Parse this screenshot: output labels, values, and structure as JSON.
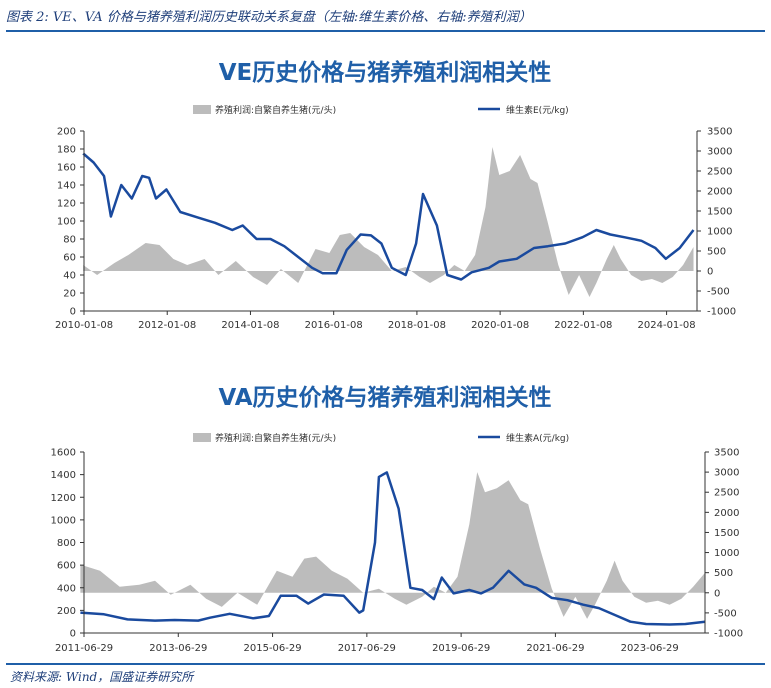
{
  "figure_caption": "图表 2: VE、VA 价格与猪养殖利润历史联动关系复盘（左轴:维生素价格、右轴:养殖利润）",
  "source": "资料来源: Wind，国盛证券研究所",
  "colors": {
    "line": "#1a4a9e",
    "area": "#bcbcbc",
    "title": "#1f5fa8",
    "axis": "#333333",
    "rule": "#1f5fa8"
  },
  "chart_data": [
    {
      "type": "line",
      "title": "VE历史价格与猪养殖利润相关性",
      "x_ticks": [
        "2010-01-08",
        "2012-01-08",
        "2014-01-08",
        "2016-01-08",
        "2018-01-08",
        "2020-01-08",
        "2022-01-08",
        "2024-01-08"
      ],
      "y_left": {
        "ticks": [
          0,
          20,
          40,
          60,
          80,
          100,
          120,
          140,
          160,
          180,
          200
        ],
        "range": [
          0,
          200
        ]
      },
      "y_right": {
        "ticks": [
          -1000,
          -500,
          0,
          500,
          1000,
          1500,
          2000,
          2500,
          3000,
          3500
        ],
        "range": [
          -1000,
          3500
        ]
      },
      "x_range": [
        "2010-01-08",
        "2024-10-01"
      ],
      "series": [
        {
          "name": "养殖利润:自繁自养生猪(元/头)",
          "type": "area",
          "axis": "right",
          "points": [
            [
              "2010-01",
              150
            ],
            [
              "2010-05",
              -100
            ],
            [
              "2010-10",
              200
            ],
            [
              "2011-02",
              400
            ],
            [
              "2011-07",
              700
            ],
            [
              "2011-11",
              650
            ],
            [
              "2012-03",
              300
            ],
            [
              "2012-07",
              150
            ],
            [
              "2012-12",
              300
            ],
            [
              "2013-04",
              -100
            ],
            [
              "2013-09",
              250
            ],
            [
              "2014-02",
              -150
            ],
            [
              "2014-06",
              -350
            ],
            [
              "2014-10",
              50
            ],
            [
              "2015-03",
              -300
            ],
            [
              "2015-08",
              550
            ],
            [
              "2015-12",
              450
            ],
            [
              "2016-03",
              900
            ],
            [
              "2016-06",
              950
            ],
            [
              "2016-10",
              600
            ],
            [
              "2017-02",
              400
            ],
            [
              "2017-06",
              0
            ],
            [
              "2017-10",
              100
            ],
            [
              "2018-02",
              -150
            ],
            [
              "2018-05",
              -300
            ],
            [
              "2018-09",
              -100
            ],
            [
              "2018-12",
              150
            ],
            [
              "2019-03",
              0
            ],
            [
              "2019-06",
              400
            ],
            [
              "2019-09",
              1600
            ],
            [
              "2019-11",
              3100
            ],
            [
              "2020-01",
              2400
            ],
            [
              "2020-04",
              2500
            ],
            [
              "2020-07",
              2900
            ],
            [
              "2020-10",
              2300
            ],
            [
              "2020-12",
              2200
            ],
            [
              "2021-03",
              1200
            ],
            [
              "2021-06",
              150
            ],
            [
              "2021-09",
              -600
            ],
            [
              "2021-12",
              -100
            ],
            [
              "2022-03",
              -650
            ],
            [
              "2022-05",
              -300
            ],
            [
              "2022-08",
              300
            ],
            [
              "2022-10",
              650
            ],
            [
              "2022-12",
              300
            ],
            [
              "2023-03",
              -100
            ],
            [
              "2023-06",
              -250
            ],
            [
              "2023-09",
              -200
            ],
            [
              "2023-12",
              -300
            ],
            [
              "2024-03",
              -150
            ],
            [
              "2024-06",
              150
            ],
            [
              "2024-09",
              600
            ]
          ]
        },
        {
          "name": "维生素E(元/kg)",
          "type": "line",
          "axis": "left",
          "points": [
            [
              "2010-01",
              175
            ],
            [
              "2010-04",
              165
            ],
            [
              "2010-07",
              150
            ],
            [
              "2010-09",
              105
            ],
            [
              "2010-12",
              140
            ],
            [
              "2011-03",
              125
            ],
            [
              "2011-06",
              150
            ],
            [
              "2011-08",
              148
            ],
            [
              "2011-10",
              125
            ],
            [
              "2012-01",
              135
            ],
            [
              "2012-05",
              110
            ],
            [
              "2012-10",
              104
            ],
            [
              "2013-03",
              98
            ],
            [
              "2013-08",
              90
            ],
            [
              "2013-11",
              95
            ],
            [
              "2014-03",
              80
            ],
            [
              "2014-07",
              80
            ],
            [
              "2014-11",
              72
            ],
            [
              "2015-03",
              60
            ],
            [
              "2015-07",
              48
            ],
            [
              "2015-10",
              42
            ],
            [
              "2016-02",
              42
            ],
            [
              "2016-05",
              68
            ],
            [
              "2016-09",
              85
            ],
            [
              "2016-12",
              84
            ],
            [
              "2017-03",
              75
            ],
            [
              "2017-06",
              48
            ],
            [
              "2017-10",
              40
            ],
            [
              "2018-01",
              75
            ],
            [
              "2018-03",
              130
            ],
            [
              "2018-07",
              95
            ],
            [
              "2018-10",
              40
            ],
            [
              "2019-02",
              35
            ],
            [
              "2019-05",
              43
            ],
            [
              "2019-10",
              48
            ],
            [
              "2020-01",
              55
            ],
            [
              "2020-06",
              58
            ],
            [
              "2020-11",
              70
            ],
            [
              "2021-03",
              72
            ],
            [
              "2021-08",
              75
            ],
            [
              "2022-01",
              82
            ],
            [
              "2022-05",
              90
            ],
            [
              "2022-09",
              85
            ],
            [
              "2023-01",
              82
            ],
            [
              "2023-06",
              78
            ],
            [
              "2023-10",
              70
            ],
            [
              "2024-01",
              58
            ],
            [
              "2024-05",
              70
            ],
            [
              "2024-09",
              90
            ]
          ]
        }
      ]
    },
    {
      "type": "line",
      "title": "VA历史价格与猪养殖利润相关性",
      "x_ticks": [
        "2011-06-29",
        "2013-06-29",
        "2015-06-29",
        "2017-06-29",
        "2019-06-29",
        "2021-06-29",
        "2023-06-29"
      ],
      "y_left": {
        "ticks": [
          0,
          200,
          400,
          600,
          800,
          1000,
          1200,
          1400,
          1600
        ],
        "range": [
          0,
          1600
        ]
      },
      "y_right": {
        "ticks": [
          -1000,
          -500,
          0,
          500,
          1000,
          1500,
          2000,
          2500,
          3000,
          3500
        ],
        "range": [
          -1000,
          3500
        ]
      },
      "x_range": [
        "2011-06-29",
        "2024-09-01"
      ],
      "series": [
        {
          "name": "养殖利润:自繁自养生猪(元/头)",
          "type": "area",
          "axis": "right",
          "points": [
            [
              "2011-06",
              700
            ],
            [
              "2011-11",
              550
            ],
            [
              "2012-04",
              150
            ],
            [
              "2012-09",
              200
            ],
            [
              "2013-01",
              300
            ],
            [
              "2013-05",
              -50
            ],
            [
              "2013-10",
              200
            ],
            [
              "2014-02",
              -150
            ],
            [
              "2014-06",
              -350
            ],
            [
              "2014-10",
              0
            ],
            [
              "2015-03",
              -300
            ],
            [
              "2015-08",
              550
            ],
            [
              "2015-12",
              400
            ],
            [
              "2016-03",
              850
            ],
            [
              "2016-06",
              900
            ],
            [
              "2016-10",
              550
            ],
            [
              "2017-02",
              350
            ],
            [
              "2017-06",
              0
            ],
            [
              "2017-10",
              100
            ],
            [
              "2018-02",
              -150
            ],
            [
              "2018-05",
              -300
            ],
            [
              "2018-09",
              -100
            ],
            [
              "2018-12",
              150
            ],
            [
              "2019-03",
              0
            ],
            [
              "2019-06",
              400
            ],
            [
              "2019-09",
              1700
            ],
            [
              "2019-11",
              3000
            ],
            [
              "2020-01",
              2500
            ],
            [
              "2020-04",
              2600
            ],
            [
              "2020-07",
              2800
            ],
            [
              "2020-10",
              2300
            ],
            [
              "2020-12",
              2200
            ],
            [
              "2021-03",
              1100
            ],
            [
              "2021-06",
              100
            ],
            [
              "2021-09",
              -600
            ],
            [
              "2021-12",
              -100
            ],
            [
              "2022-03",
              -650
            ],
            [
              "2022-05",
              -300
            ],
            [
              "2022-08",
              300
            ],
            [
              "2022-10",
              800
            ],
            [
              "2022-12",
              300
            ],
            [
              "2023-03",
              -100
            ],
            [
              "2023-06",
              -250
            ],
            [
              "2023-09",
              -200
            ],
            [
              "2023-12",
              -300
            ],
            [
              "2024-03",
              -150
            ],
            [
              "2024-06",
              150
            ],
            [
              "2024-09",
              500
            ]
          ]
        },
        {
          "name": "维生素A(元/kg)",
          "type": "line",
          "axis": "left",
          "points": [
            [
              "2011-06",
              180
            ],
            [
              "2011-12",
              165
            ],
            [
              "2012-06",
              120
            ],
            [
              "2013-01",
              110
            ],
            [
              "2013-06",
              115
            ],
            [
              "2013-12",
              110
            ],
            [
              "2014-03",
              135
            ],
            [
              "2014-08",
              170
            ],
            [
              "2015-02",
              130
            ],
            [
              "2015-06",
              150
            ],
            [
              "2015-09",
              330
            ],
            [
              "2016-01",
              330
            ],
            [
              "2016-04",
              260
            ],
            [
              "2016-08",
              340
            ],
            [
              "2017-01",
              330
            ],
            [
              "2017-05",
              180
            ],
            [
              "2017-06",
              200
            ],
            [
              "2017-09",
              800
            ],
            [
              "2017-10",
              1380
            ],
            [
              "2017-12",
              1420
            ],
            [
              "2018-03",
              1100
            ],
            [
              "2018-06",
              400
            ],
            [
              "2018-09",
              380
            ],
            [
              "2018-12",
              300
            ],
            [
              "2019-02",
              490
            ],
            [
              "2019-05",
              350
            ],
            [
              "2019-09",
              380
            ],
            [
              "2019-12",
              350
            ],
            [
              "2020-03",
              400
            ],
            [
              "2020-07",
              550
            ],
            [
              "2020-11",
              430
            ],
            [
              "2021-02",
              400
            ],
            [
              "2021-06",
              310
            ],
            [
              "2021-10",
              290
            ],
            [
              "2022-02",
              250
            ],
            [
              "2022-06",
              220
            ],
            [
              "2022-10",
              160
            ],
            [
              "2023-02",
              100
            ],
            [
              "2023-06",
              80
            ],
            [
              "2023-12",
              75
            ],
            [
              "2024-04",
              80
            ],
            [
              "2024-09",
              100
            ]
          ]
        }
      ]
    }
  ]
}
